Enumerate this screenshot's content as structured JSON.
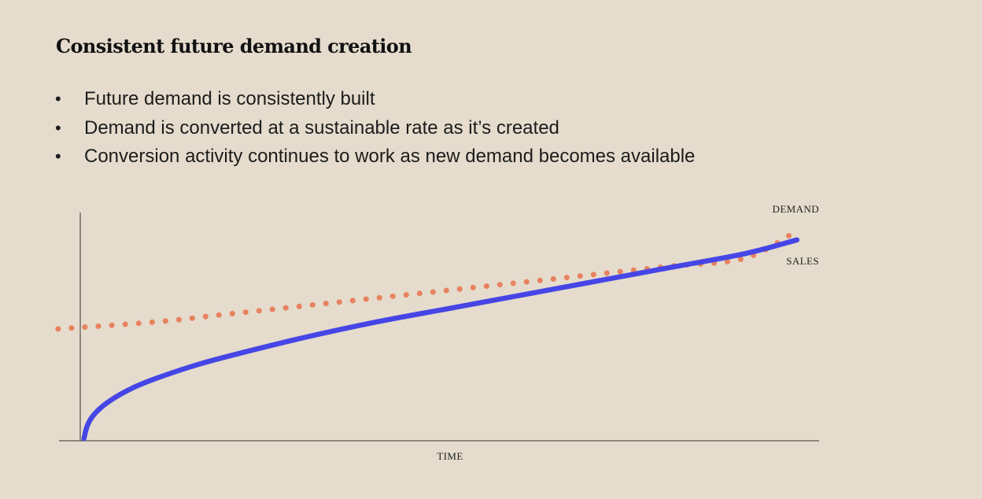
{
  "slide": {
    "title": "Consistent future demand creation",
    "bullets": [
      "Future demand is consistently built",
      "Demand is converted at a sustainable rate as it’s created",
      "Conversion activity continues to work as new demand becomes available"
    ]
  },
  "chart_data": {
    "type": "line",
    "xlabel": "TIME",
    "ylabel": "",
    "xlim": [
      0,
      100
    ],
    "ylim": [
      0,
      100
    ],
    "grid": false,
    "axis_ticks": false,
    "series": [
      {
        "name": "DEMAND",
        "color": "#e8825f",
        "style": "dotted",
        "x": [
          -3,
          10,
          20,
          30,
          40,
          50,
          60,
          70,
          80,
          90,
          97
        ],
        "y": [
          49,
          52,
          55.5,
          59,
          62.5,
          66,
          69.5,
          73,
          76.5,
          80,
          92
        ]
      },
      {
        "name": "SALES",
        "color": "#4646e6",
        "style": "solid",
        "x": [
          0.5,
          1,
          2,
          4,
          7,
          10,
          15,
          20,
          30,
          40,
          50,
          60,
          70,
          80,
          90,
          97
        ],
        "y": [
          1,
          7,
          12,
          17.5,
          23,
          27,
          32.5,
          37,
          45,
          52,
          58,
          64,
          70,
          76,
          82,
          88
        ]
      }
    ]
  }
}
